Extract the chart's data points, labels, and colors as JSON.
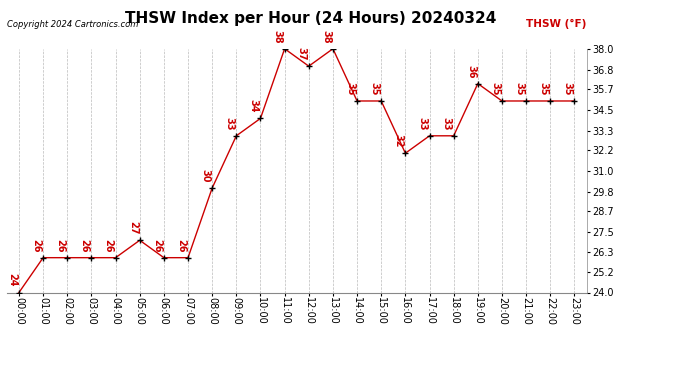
{
  "title": "THSW Index per Hour (24 Hours) 20240324",
  "copyright": "Copyright 2024 Cartronics.com",
  "legend_label": "THSW (°F)",
  "hours": [
    0,
    1,
    2,
    3,
    4,
    5,
    6,
    7,
    8,
    9,
    10,
    11,
    12,
    13,
    14,
    15,
    16,
    17,
    18,
    19,
    20,
    21,
    22,
    23
  ],
  "values": [
    24,
    26,
    26,
    26,
    26,
    27,
    26,
    26,
    30,
    33,
    34,
    38,
    37,
    38,
    35,
    35,
    32,
    33,
    33,
    36,
    35,
    35,
    35,
    35
  ],
  "yticks": [
    24.0,
    25.2,
    26.3,
    27.5,
    28.7,
    29.8,
    31.0,
    32.2,
    33.3,
    34.5,
    35.7,
    36.8,
    38.0
  ],
  "line_color": "#cc0000",
  "marker_color": "#000000",
  "bg_color": "#ffffff",
  "grid_color": "#bbbbbb",
  "title_fontsize": 11,
  "copyright_fontsize": 6,
  "legend_fontsize": 7.5,
  "tick_fontsize": 7,
  "annotation_fontsize": 7,
  "ylim_min": 24.0,
  "ylim_max": 38.0
}
